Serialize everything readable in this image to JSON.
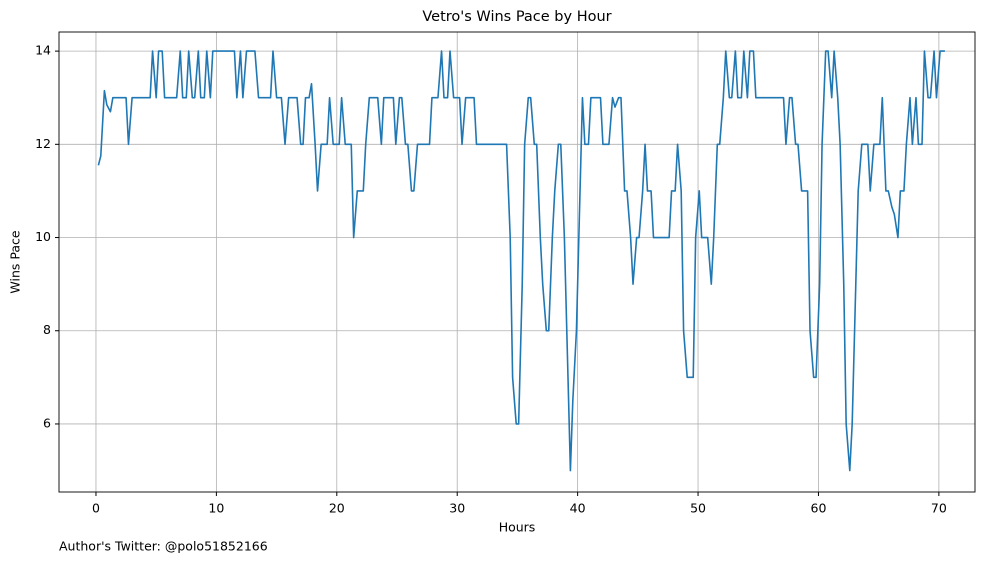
{
  "chart_data": {
    "type": "line",
    "title": "Vetro's Wins Pace by Hour",
    "x_label": "Hours",
    "y_label": "Wins Pace",
    "annotation": "Author's Twitter: @polo51852166",
    "color": "#1f77b4",
    "grid": true,
    "xlim": [
      -3.07,
      73.0
    ],
    "ylim": [
      4.54,
      14.41
    ],
    "xticks": [
      0,
      10,
      20,
      30,
      40,
      50,
      60,
      70
    ],
    "yticks": [
      6,
      8,
      10,
      12,
      14
    ],
    "x": [
      0.2,
      0.4,
      0.7,
      0.9,
      1.2,
      1.4,
      2.5,
      2.7,
      3.0,
      4.5,
      4.7,
      5.0,
      5.2,
      5.5,
      5.7,
      6.7,
      7.0,
      7.2,
      7.5,
      7.7,
      8.0,
      8.2,
      8.5,
      8.7,
      9.0,
      9.2,
      9.5,
      9.7,
      11.5,
      11.7,
      12.0,
      12.2,
      12.5,
      13.2,
      13.5,
      14.5,
      14.7,
      15.0,
      15.4,
      15.7,
      16.0,
      16.7,
      17.0,
      17.2,
      17.4,
      17.7,
      17.9,
      18.2,
      18.4,
      18.7,
      19.2,
      19.4,
      19.7,
      20.2,
      20.4,
      20.7,
      21.2,
      21.4,
      21.7,
      22.2,
      22.4,
      22.7,
      23.4,
      23.7,
      23.9,
      24.7,
      24.9,
      25.2,
      25.4,
      25.7,
      25.9,
      26.2,
      26.4,
      26.7,
      27.7,
      27.9,
      28.4,
      28.7,
      28.9,
      29.2,
      29.4,
      29.7,
      30.2,
      30.4,
      30.7,
      31.4,
      31.6,
      34.1,
      34.4,
      34.6,
      34.9,
      35.1,
      35.4,
      35.6,
      35.9,
      36.1,
      36.4,
      36.6,
      36.9,
      37.1,
      37.4,
      37.6,
      37.9,
      38.1,
      38.4,
      38.6,
      38.9,
      39.1,
      39.4,
      39.6,
      39.9,
      40.1,
      40.4,
      40.6,
      40.9,
      41.1,
      41.9,
      42.1,
      42.6,
      42.9,
      43.1,
      43.4,
      43.6,
      43.9,
      44.1,
      44.4,
      44.6,
      44.9,
      45.1,
      45.4,
      45.6,
      45.8,
      46.1,
      46.3,
      47.6,
      47.8,
      48.1,
      48.3,
      48.6,
      48.8,
      49.1,
      49.6,
      49.8,
      50.1,
      50.3,
      50.8,
      51.1,
      51.3,
      51.6,
      51.8,
      52.1,
      52.3,
      52.6,
      52.8,
      53.1,
      53.3,
      53.6,
      53.8,
      54.1,
      54.3,
      54.6,
      54.8,
      57.1,
      57.3,
      57.6,
      57.8,
      58.1,
      58.3,
      58.6,
      59.1,
      59.3,
      59.6,
      59.8,
      60.1,
      60.3,
      60.6,
      60.8,
      61.1,
      61.3,
      61.6,
      61.8,
      62.1,
      62.3,
      62.6,
      62.8,
      63.1,
      63.3,
      63.6,
      64.1,
      64.3,
      64.6,
      65.1,
      65.3,
      65.6,
      65.8,
      66.1,
      66.3,
      66.6,
      66.8,
      67.1,
      67.3,
      67.6,
      67.8,
      68.1,
      68.3,
      68.6,
      68.8,
      69.1,
      69.3,
      69.6,
      69.8,
      70.1,
      70.5
    ],
    "values": [
      11.55,
      11.75,
      13.15,
      12.85,
      12.7,
      13,
      13,
      12,
      13,
      13,
      14,
      13,
      14,
      14,
      13,
      13,
      14,
      13,
      13,
      14,
      13,
      13,
      14,
      13,
      13,
      14,
      13,
      14,
      14,
      13,
      14,
      13,
      14,
      14,
      13,
      13,
      14,
      13,
      13,
      12,
      13,
      13,
      12,
      12,
      13,
      13,
      13.3,
      12,
      11,
      12,
      12,
      13,
      12,
      12,
      13,
      12,
      12,
      10,
      11,
      11,
      12,
      13,
      13,
      12,
      13,
      13,
      12,
      13,
      13,
      12,
      12,
      11,
      11,
      12,
      12,
      13,
      13,
      14,
      13,
      13,
      14,
      13,
      13,
      12,
      13,
      13,
      12,
      12,
      10,
      7,
      6,
      6,
      9,
      12,
      13,
      13,
      12,
      12,
      10,
      9,
      8,
      8,
      10,
      11,
      12,
      12,
      10,
      8,
      5,
      6.5,
      8,
      10,
      13,
      12,
      12,
      13,
      13,
      12,
      12,
      13,
      12.8,
      13,
      13,
      11,
      11,
      10,
      9,
      10,
      10,
      11,
      12,
      11,
      11,
      10,
      10,
      11,
      11,
      12,
      11,
      8,
      7,
      7,
      10,
      11,
      10,
      10,
      9,
      10,
      12,
      12,
      13,
      14,
      13,
      13,
      14,
      13,
      13,
      14,
      13,
      14,
      14,
      13,
      13,
      12,
      13,
      13,
      12,
      12,
      11,
      11,
      8,
      7,
      7,
      9,
      12,
      14,
      14,
      13,
      14,
      13,
      12,
      9,
      6,
      5,
      6,
      9,
      11,
      12,
      12,
      11,
      12,
      12,
      13,
      11,
      11,
      10.65,
      10.5,
      10,
      11,
      11,
      12,
      13,
      12,
      13,
      12,
      12,
      14,
      13,
      13,
      14,
      13,
      14,
      14
    ]
  }
}
